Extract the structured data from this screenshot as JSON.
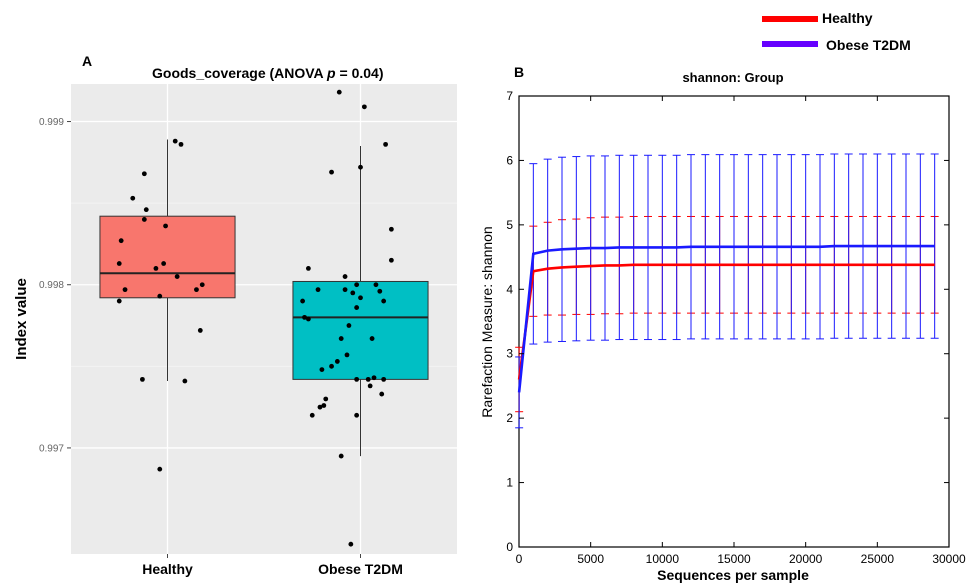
{
  "figure": {
    "legend": {
      "entries": [
        {
          "name": "Healthy",
          "color": "#ff0000"
        },
        {
          "name": "Obese T2DM",
          "color": "#6600ff"
        }
      ],
      "placement": "top-right"
    }
  },
  "chart_data": [
    {
      "panel_label": "A",
      "type": "boxplot",
      "title": "Goods_coverage (ANOVA p = 0.04)",
      "title_parts": {
        "prefix": "Goods_coverage (ANOVA ",
        "italic": "p",
        "suffix": " = 0.04)"
      },
      "xlabel": "",
      "ylabel": "Index value",
      "ylim": [
        0.99635,
        0.99923
      ],
      "yticks": [
        0.997,
        0.998,
        0.999
      ],
      "ytick_labels": [
        "0.997",
        "0.998",
        "0.999"
      ],
      "grid": true,
      "categories": [
        "Healthy",
        "Obese T2DM"
      ],
      "colors": {
        "Healthy": "#f8766d",
        "Obese T2DM": "#00bfc4",
        "panel": "#ebebeb"
      },
      "boxes": [
        {
          "name": "Healthy",
          "min": 0.99741,
          "q1": 0.99792,
          "median": 0.99807,
          "q3": 0.99842,
          "max": 0.99889
        },
        {
          "name": "Obese T2DM",
          "min": 0.99695,
          "q1": 0.99742,
          "median": 0.9978,
          "q3": 0.99802,
          "max": 0.99885
        }
      ],
      "points": [
        {
          "group": "Healthy",
          "jitter": -0.18,
          "value": 0.99853
        },
        {
          "group": "Healthy",
          "jitter": -0.12,
          "value": 0.99868
        },
        {
          "group": "Healthy",
          "jitter": -0.11,
          "value": 0.99846
        },
        {
          "group": "Healthy",
          "jitter": -0.12,
          "value": 0.9984
        },
        {
          "group": "Healthy",
          "jitter": -0.24,
          "value": 0.99827
        },
        {
          "group": "Healthy",
          "jitter": -0.25,
          "value": 0.99813
        },
        {
          "group": "Healthy",
          "jitter": -0.06,
          "value": 0.9981
        },
        {
          "group": "Healthy",
          "jitter": -0.22,
          "value": 0.99797
        },
        {
          "group": "Healthy",
          "jitter": -0.25,
          "value": 0.9979
        },
        {
          "group": "Healthy",
          "jitter": -0.13,
          "value": 0.99742
        },
        {
          "group": "Healthy",
          "jitter": 0.04,
          "value": 0.99888
        },
        {
          "group": "Healthy",
          "jitter": 0.07,
          "value": 0.99886
        },
        {
          "group": "Healthy",
          "jitter": -0.01,
          "value": 0.99836
        },
        {
          "group": "Healthy",
          "jitter": -0.02,
          "value": 0.99813
        },
        {
          "group": "Healthy",
          "jitter": -0.04,
          "value": 0.99793
        },
        {
          "group": "Healthy",
          "jitter": 0.05,
          "value": 0.99805
        },
        {
          "group": "Healthy",
          "jitter": 0.15,
          "value": 0.99797
        },
        {
          "group": "Healthy",
          "jitter": 0.18,
          "value": 0.998
        },
        {
          "group": "Healthy",
          "jitter": 0.17,
          "value": 0.99772
        },
        {
          "group": "Healthy",
          "jitter": 0.09,
          "value": 0.99741
        },
        {
          "group": "Healthy",
          "jitter": -0.04,
          "value": 0.99687
        },
        {
          "group": "Obese T2DM",
          "jitter": -0.11,
          "value": 0.99918
        },
        {
          "group": "Obese T2DM",
          "jitter": 0.02,
          "value": 0.99909
        },
        {
          "group": "Obese T2DM",
          "jitter": 0.13,
          "value": 0.99886
        },
        {
          "group": "Obese T2DM",
          "jitter": 0.0,
          "value": 0.99872
        },
        {
          "group": "Obese T2DM",
          "jitter": -0.15,
          "value": 0.99869
        },
        {
          "group": "Obese T2DM",
          "jitter": 0.16,
          "value": 0.99834
        },
        {
          "group": "Obese T2DM",
          "jitter": 0.16,
          "value": 0.99815
        },
        {
          "group": "Obese T2DM",
          "jitter": -0.27,
          "value": 0.9981
        },
        {
          "group": "Obese T2DM",
          "jitter": -0.08,
          "value": 0.99805
        },
        {
          "group": "Obese T2DM",
          "jitter": -0.02,
          "value": 0.998
        },
        {
          "group": "Obese T2DM",
          "jitter": 0.08,
          "value": 0.998
        },
        {
          "group": "Obese T2DM",
          "jitter": -0.22,
          "value": 0.99797
        },
        {
          "group": "Obese T2DM",
          "jitter": -0.08,
          "value": 0.99797
        },
        {
          "group": "Obese T2DM",
          "jitter": -0.04,
          "value": 0.99795
        },
        {
          "group": "Obese T2DM",
          "jitter": 0.1,
          "value": 0.99796
        },
        {
          "group": "Obese T2DM",
          "jitter": 0.0,
          "value": 0.99792
        },
        {
          "group": "Obese T2DM",
          "jitter": -0.3,
          "value": 0.9979
        },
        {
          "group": "Obese T2DM",
          "jitter": 0.12,
          "value": 0.9979
        },
        {
          "group": "Obese T2DM",
          "jitter": -0.02,
          "value": 0.99786
        },
        {
          "group": "Obese T2DM",
          "jitter": -0.29,
          "value": 0.9978
        },
        {
          "group": "Obese T2DM",
          "jitter": -0.27,
          "value": 0.99779
        },
        {
          "group": "Obese T2DM",
          "jitter": -0.06,
          "value": 0.99775
        },
        {
          "group": "Obese T2DM",
          "jitter": 0.06,
          "value": 0.99767
        },
        {
          "group": "Obese T2DM",
          "jitter": -0.1,
          "value": 0.99767
        },
        {
          "group": "Obese T2DM",
          "jitter": -0.07,
          "value": 0.99757
        },
        {
          "group": "Obese T2DM",
          "jitter": -0.12,
          "value": 0.99753
        },
        {
          "group": "Obese T2DM",
          "jitter": -0.15,
          "value": 0.9975
        },
        {
          "group": "Obese T2DM",
          "jitter": -0.2,
          "value": 0.99748
        },
        {
          "group": "Obese T2DM",
          "jitter": -0.02,
          "value": 0.99742
        },
        {
          "group": "Obese T2DM",
          "jitter": 0.04,
          "value": 0.99742
        },
        {
          "group": "Obese T2DM",
          "jitter": 0.07,
          "value": 0.99743
        },
        {
          "group": "Obese T2DM",
          "jitter": 0.12,
          "value": 0.99742
        },
        {
          "group": "Obese T2DM",
          "jitter": 0.05,
          "value": 0.99738
        },
        {
          "group": "Obese T2DM",
          "jitter": 0.11,
          "value": 0.99733
        },
        {
          "group": "Obese T2DM",
          "jitter": -0.18,
          "value": 0.9973
        },
        {
          "group": "Obese T2DM",
          "jitter": -0.21,
          "value": 0.99725
        },
        {
          "group": "Obese T2DM",
          "jitter": -0.19,
          "value": 0.99726
        },
        {
          "group": "Obese T2DM",
          "jitter": -0.25,
          "value": 0.9972
        },
        {
          "group": "Obese T2DM",
          "jitter": -0.02,
          "value": 0.9972
        },
        {
          "group": "Obese T2DM",
          "jitter": -0.1,
          "value": 0.99695
        },
        {
          "group": "Obese T2DM",
          "jitter": -0.05,
          "value": 0.99641
        }
      ]
    },
    {
      "panel_label": "B",
      "type": "line",
      "title": "shannon: Group",
      "xlabel": "Sequences per sample",
      "ylabel": "Rarefaction Measure: shannon",
      "xlim": [
        0,
        30000
      ],
      "ylim": [
        0,
        7
      ],
      "xticks": [
        0,
        5000,
        10000,
        15000,
        20000,
        25000,
        30000
      ],
      "yticks": [
        0,
        1,
        2,
        3,
        4,
        5,
        6,
        7
      ],
      "grid": false,
      "x": [
        10,
        1000,
        2000,
        3000,
        4000,
        5000,
        6000,
        7000,
        8000,
        9000,
        10000,
        11000,
        12000,
        13000,
        14000,
        15000,
        16000,
        17000,
        18000,
        19000,
        20000,
        21000,
        22000,
        23000,
        24000,
        25000,
        26000,
        27000,
        28000,
        29000
      ],
      "series": [
        {
          "name": "Healthy",
          "color": "#ff0000",
          "values": [
            2.6,
            4.28,
            4.32,
            4.34,
            4.35,
            4.36,
            4.37,
            4.37,
            4.38,
            4.38,
            4.38,
            4.38,
            4.38,
            4.38,
            4.38,
            4.38,
            4.38,
            4.38,
            4.38,
            4.38,
            4.38,
            4.38,
            4.38,
            4.38,
            4.38,
            4.38,
            4.38,
            4.38,
            4.38,
            4.38
          ],
          "error": [
            0.5,
            0.7,
            0.72,
            0.74,
            0.74,
            0.75,
            0.75,
            0.75,
            0.75,
            0.75,
            0.75,
            0.75,
            0.75,
            0.75,
            0.75,
            0.75,
            0.75,
            0.75,
            0.75,
            0.75,
            0.75,
            0.75,
            0.75,
            0.75,
            0.75,
            0.75,
            0.75,
            0.75,
            0.75,
            0.75
          ]
        },
        {
          "name": "Obese T2DM",
          "color": "#1a1aff",
          "values": [
            2.4,
            4.55,
            4.6,
            4.62,
            4.63,
            4.64,
            4.64,
            4.65,
            4.65,
            4.65,
            4.65,
            4.65,
            4.66,
            4.66,
            4.66,
            4.66,
            4.66,
            4.66,
            4.66,
            4.66,
            4.66,
            4.66,
            4.67,
            4.67,
            4.67,
            4.67,
            4.67,
            4.67,
            4.67,
            4.67
          ],
          "error": [
            0.55,
            1.4,
            1.42,
            1.43,
            1.43,
            1.43,
            1.43,
            1.43,
            1.43,
            1.43,
            1.43,
            1.43,
            1.43,
            1.43,
            1.43,
            1.43,
            1.43,
            1.43,
            1.43,
            1.43,
            1.43,
            1.43,
            1.43,
            1.43,
            1.43,
            1.43,
            1.43,
            1.43,
            1.43,
            1.43
          ]
        }
      ]
    }
  ]
}
